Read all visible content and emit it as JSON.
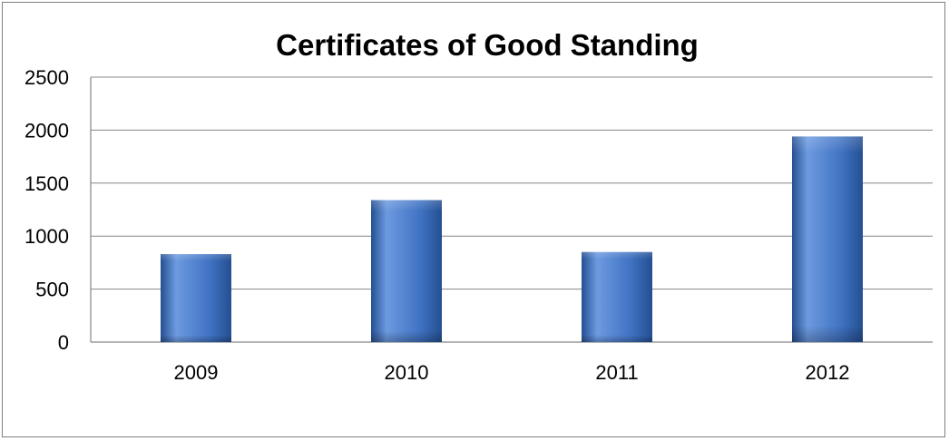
{
  "chart_data": {
    "type": "bar",
    "title": "Certificates of Good Standing",
    "categories": [
      "2009",
      "2010",
      "2011",
      "2012"
    ],
    "values": [
      830,
      1340,
      850,
      1940
    ],
    "ylim": [
      0,
      2500
    ],
    "yticks": [
      0,
      500,
      1000,
      1500,
      2000,
      2500
    ],
    "grid": true,
    "legend": "none",
    "colors": {
      "bar_light": "#6d9ae0",
      "bar_mid": "#3f72c2",
      "bar_dark": "#244f91",
      "grid": "#878787"
    }
  }
}
